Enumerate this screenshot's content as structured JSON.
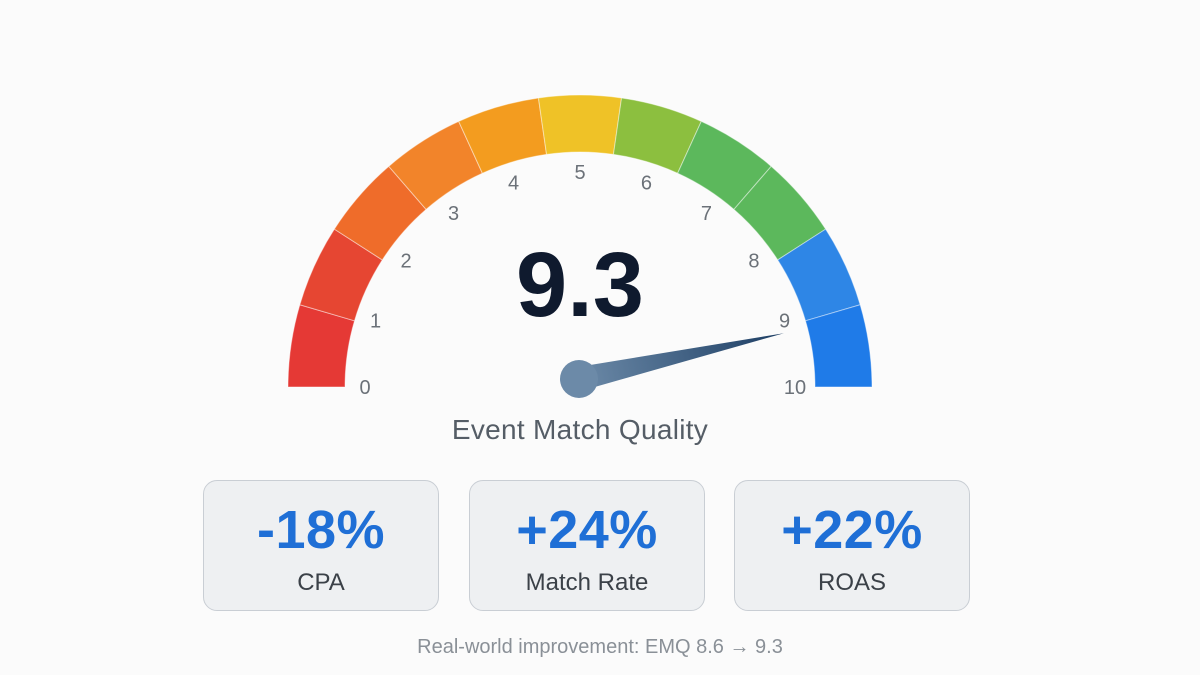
{
  "gauge": {
    "score": "9.3",
    "score_value": 9.3,
    "min": 0,
    "max": 10,
    "tick_labels": [
      "0",
      "1",
      "2",
      "3",
      "4",
      "5",
      "6",
      "7",
      "8",
      "9",
      "10"
    ],
    "segment_colors": [
      "#e53935",
      "#e64632",
      "#ef6c2a",
      "#f2842a",
      "#f39c1f",
      "#efc227",
      "#8cbf3f",
      "#5cb85c",
      "#5cb85c",
      "#2e86e6",
      "#1f7be8"
    ],
    "needle_color": "#1c3d63",
    "hub_color": "#6c8aa8",
    "caption": "Event Match Quality"
  },
  "metrics": [
    {
      "value": "-18%",
      "label": "CPA"
    },
    {
      "value": "+24%",
      "label": "Match Rate"
    },
    {
      "value": "+22%",
      "label": "ROAS"
    }
  ],
  "footnote": "Real-world improvement: EMQ 8.6 → 9.3",
  "colors": {
    "accent": "#1f6fd6",
    "background": "#fbfbfb",
    "card_background": "#eef0f2"
  }
}
